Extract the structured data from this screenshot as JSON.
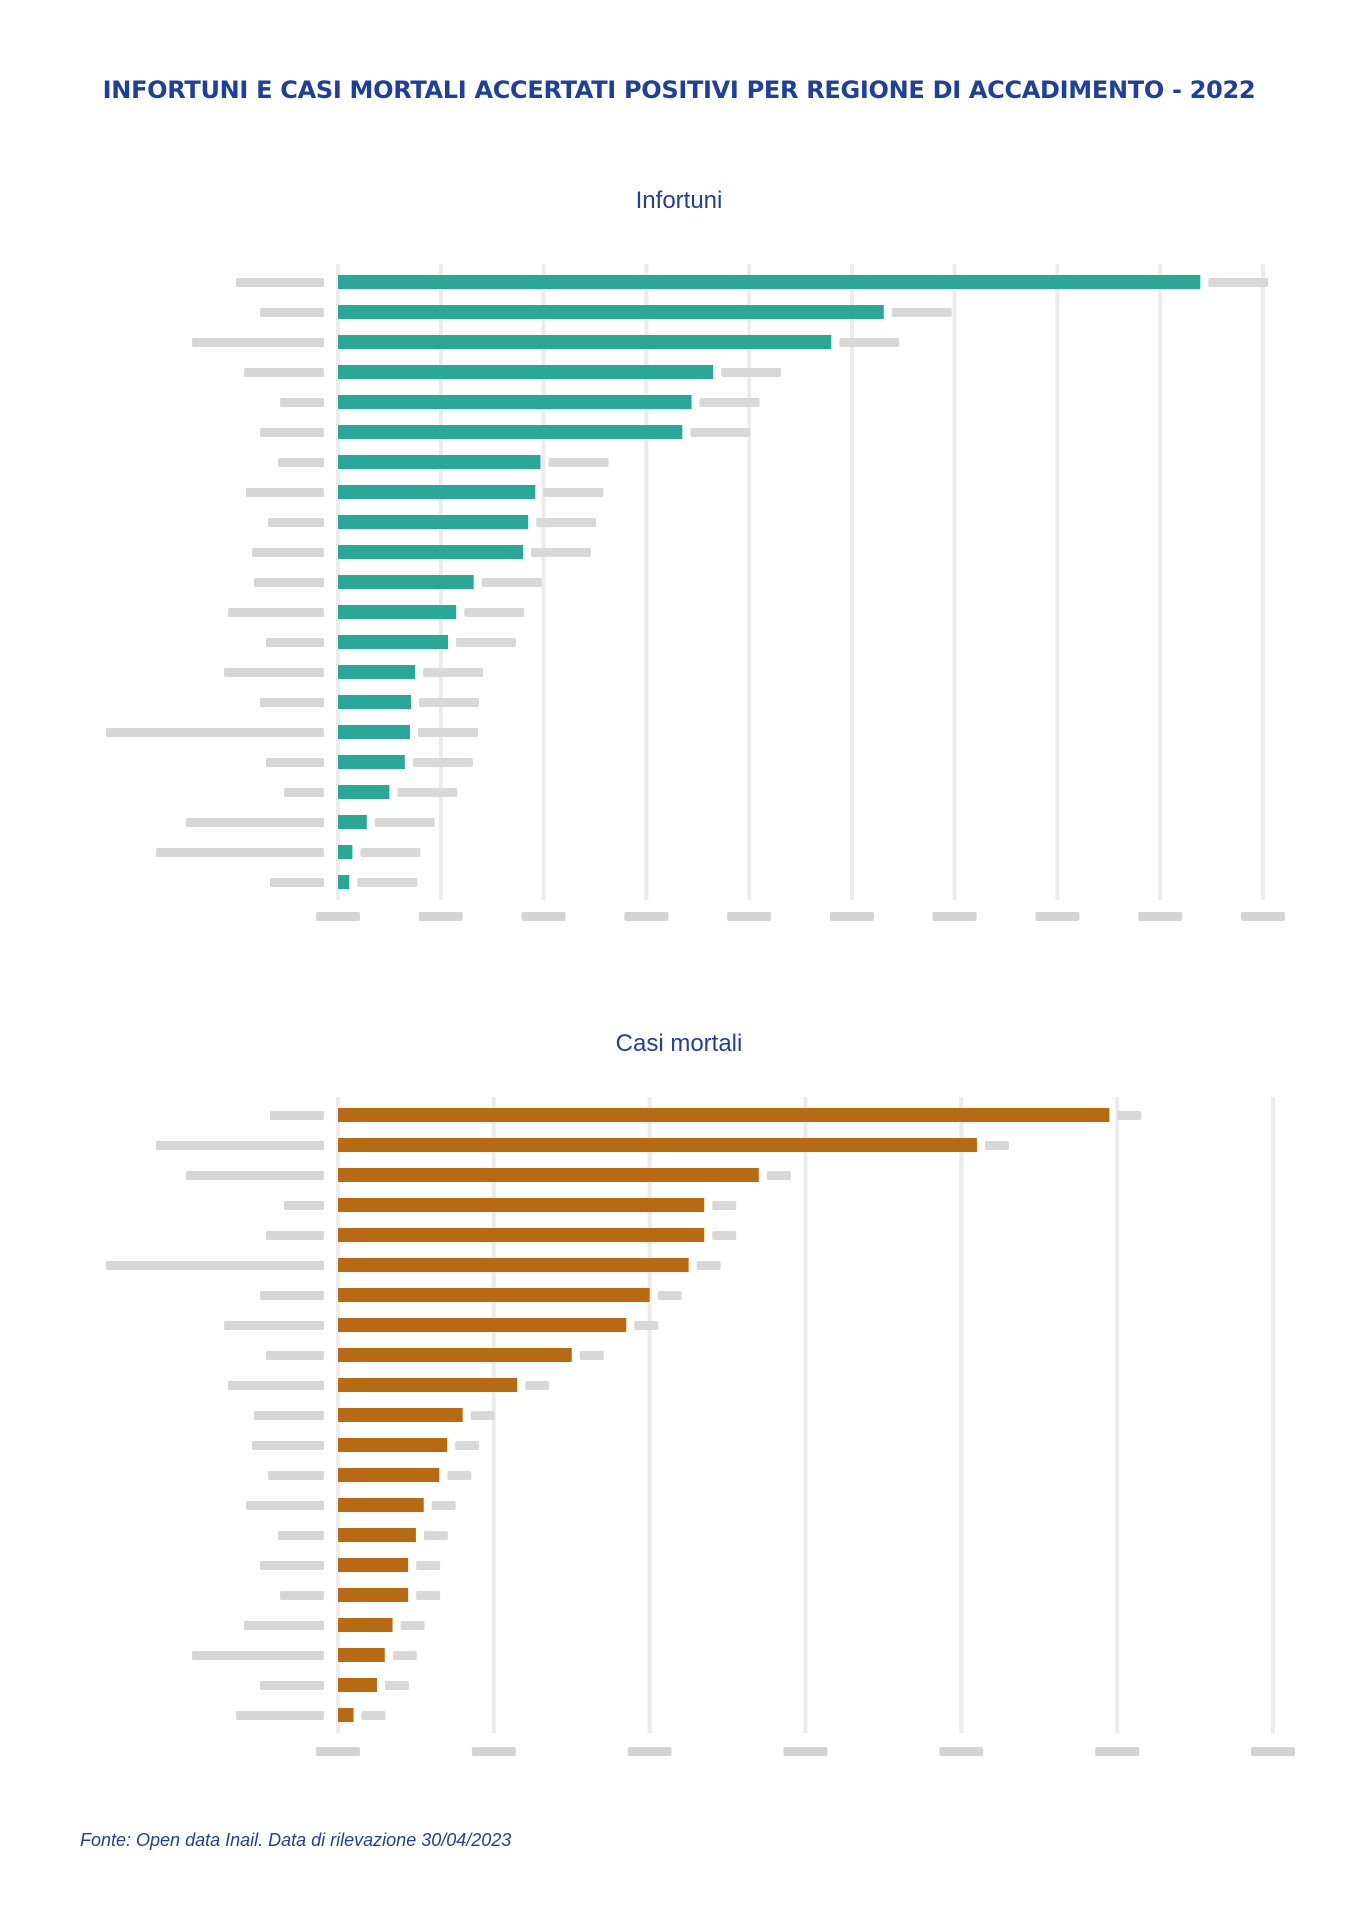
{
  "title": "INFORTUNI E CASI MORTALI ACCERTATI POSITIVI PER REGIONE DI ACCADIMENTO - 2022",
  "source": "Fonte: Open data Inail. Data di rilevazione 30/04/2023",
  "colors": {
    "title": "#1f3f9f",
    "infortuni_bar": "#2aa896",
    "mortali_bar": "#b86a12",
    "grid": "#ececec"
  },
  "chart_data": [
    {
      "type": "bar",
      "orientation": "horizontal",
      "title": "Infortuni",
      "categories": [],
      "values": [],
      "approx_bar_lengths": [
        83900,
        53100,
        48000,
        36500,
        34400,
        33500,
        19700,
        19200,
        18500,
        18000,
        13200,
        11500,
        10700,
        7500,
        7100,
        7000,
        6500,
        5000,
        2800,
        1400,
        1100
      ],
      "xlim": [
        0,
        90000
      ],
      "grid": true,
      "legend": "none"
    },
    {
      "type": "bar",
      "orientation": "horizontal",
      "title": "Casi mortali",
      "categories": [],
      "values": [],
      "approx_bar_lengths": [
        99,
        82,
        54,
        47,
        47,
        45,
        40,
        37,
        30,
        23,
        16,
        14,
        13,
        11,
        10,
        9,
        9,
        7,
        6,
        5,
        2
      ],
      "xlim": [
        0,
        120
      ],
      "grid": true,
      "legend": "none"
    }
  ]
}
